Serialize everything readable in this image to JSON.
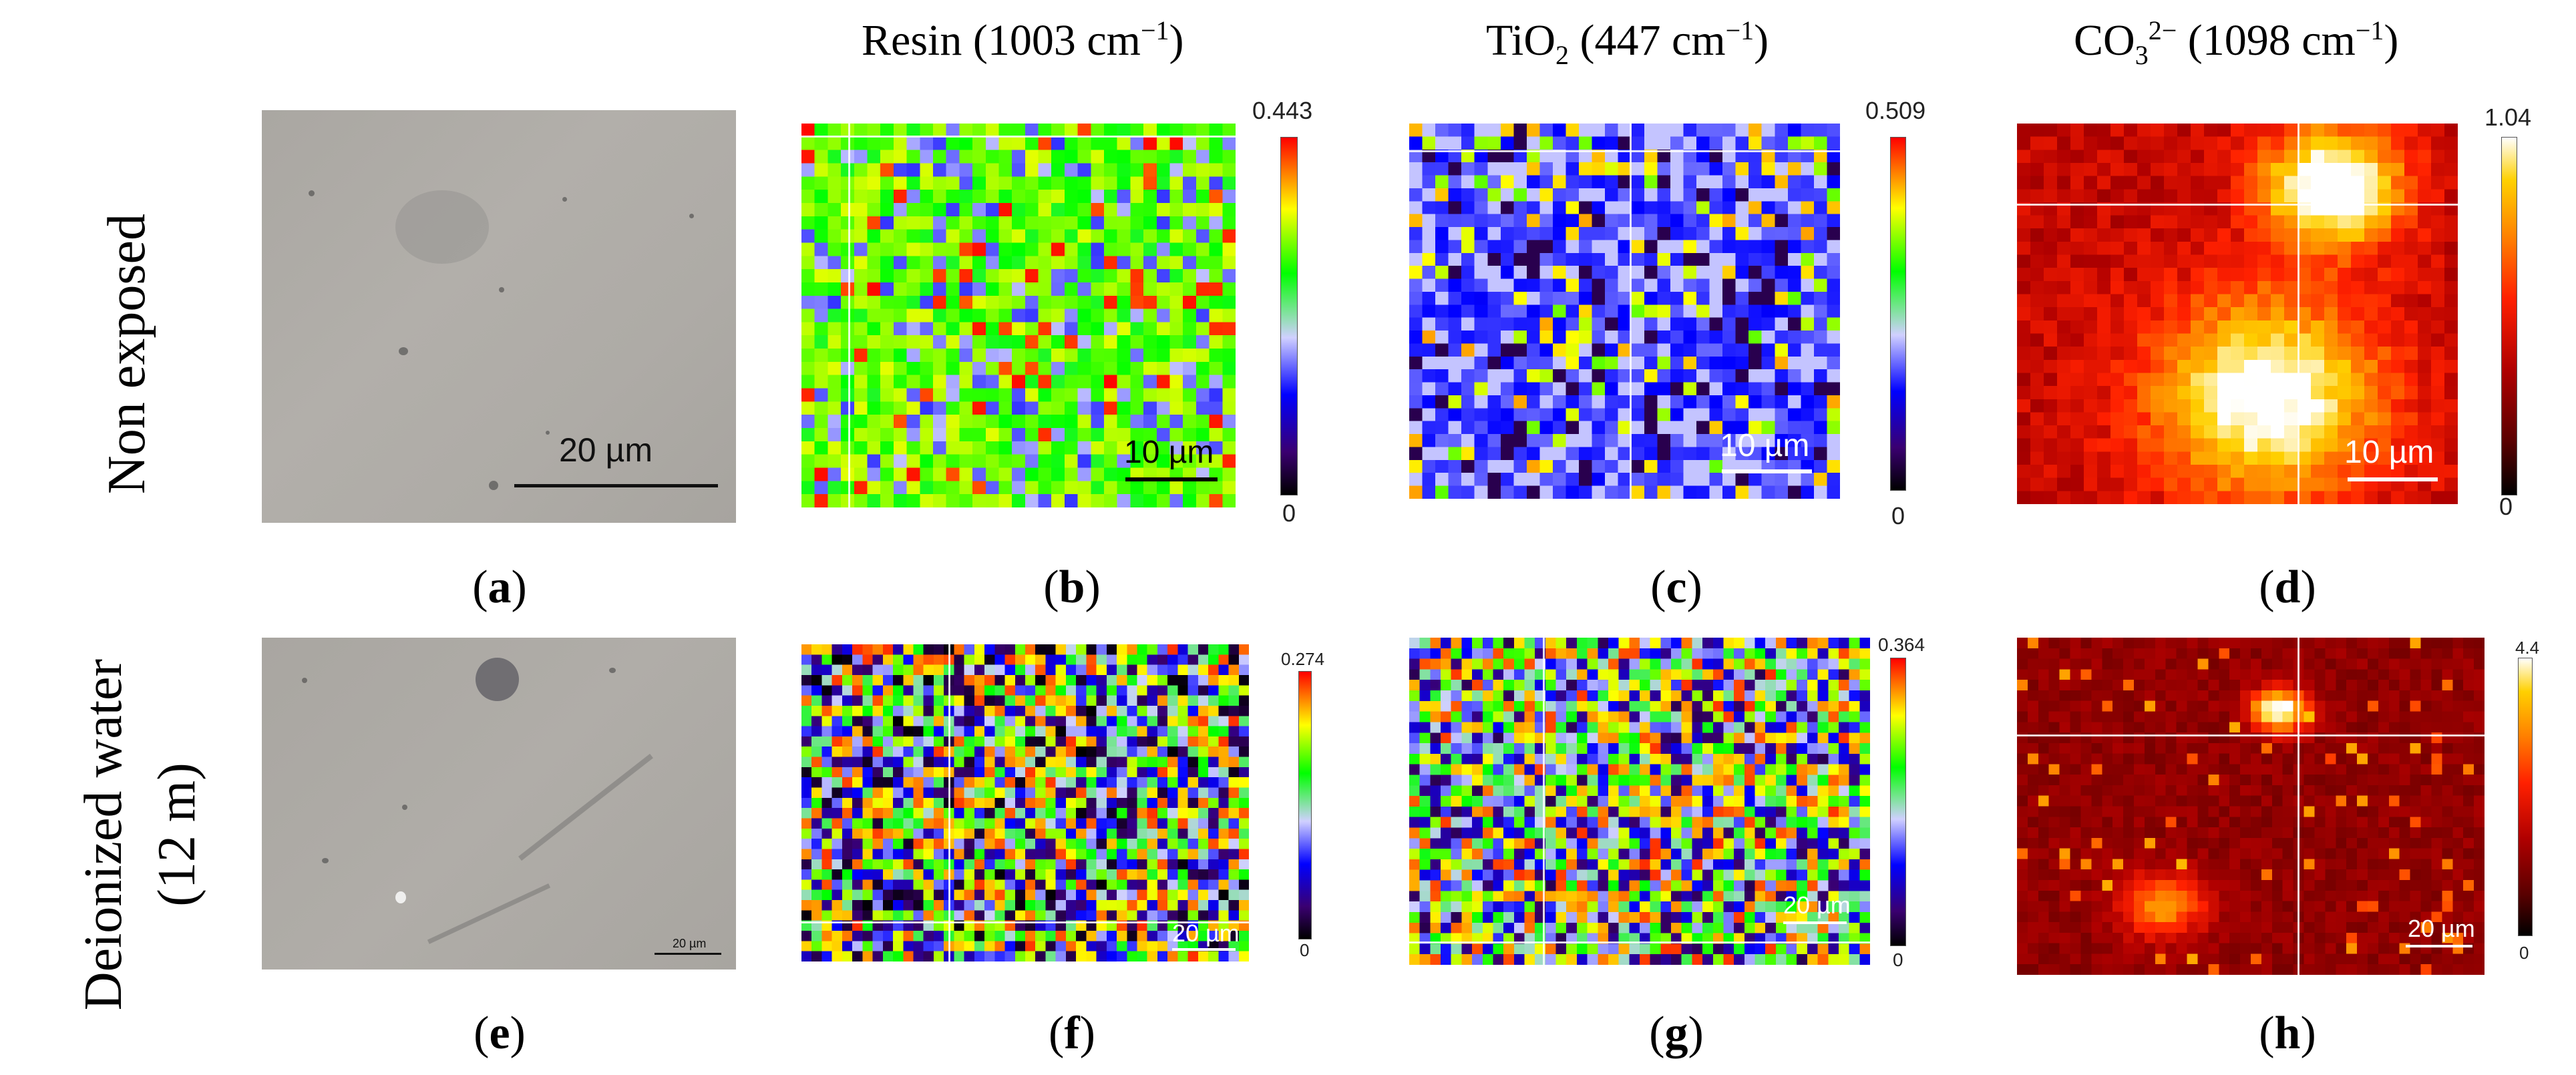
{
  "columns": {
    "resin": {
      "name": "Resin",
      "band": "(1003 cm",
      "sup": "−1",
      "close": ")"
    },
    "tio2": {
      "name": "TiO",
      "sub": "2",
      "band": " (447 cm",
      "sup": "−1",
      "close": ")"
    },
    "co3": {
      "name": "CO",
      "sub": "3",
      "sup1": "2−",
      "band": " (1098 cm",
      "sup": "−1",
      "close": ")"
    }
  },
  "rows": {
    "top": {
      "label": "Non exposed"
    },
    "bottom": {
      "label_line1": "Deionized water",
      "label_line2": "(12 m)"
    }
  },
  "panels": [
    {
      "id": "a",
      "caption": "a",
      "type": "micrograph",
      "scale_bar": "20 µm"
    },
    {
      "id": "b",
      "caption": "b",
      "type": "map",
      "colormap": "rainbow",
      "scale_bar": "10 µm",
      "cbar_max": "0.443",
      "cbar_min": "0"
    },
    {
      "id": "c",
      "caption": "c",
      "type": "map",
      "colormap": "rainbow",
      "scale_bar": "10 µm",
      "cbar_max": "0.509",
      "cbar_min": "0"
    },
    {
      "id": "d",
      "caption": "d",
      "type": "map",
      "colormap": "hot",
      "scale_bar": "10 µm",
      "cbar_max": "1.04",
      "cbar_min": "0"
    },
    {
      "id": "e",
      "caption": "e",
      "type": "micrograph",
      "scale_bar": "20 µm"
    },
    {
      "id": "f",
      "caption": "f",
      "type": "map",
      "colormap": "rainbow",
      "scale_bar": "20 µm",
      "cbar_max": "0.274",
      "cbar_min": "0"
    },
    {
      "id": "g",
      "caption": "g",
      "type": "map",
      "colormap": "rainbow",
      "scale_bar": "20 µm",
      "cbar_max": "0.364",
      "cbar_min": "0"
    },
    {
      "id": "h",
      "caption": "h",
      "type": "map",
      "colormap": "hot",
      "scale_bar": "20 µm",
      "cbar_max": "4.4",
      "cbar_min": "0"
    }
  ],
  "colors": {
    "rainbow": [
      "#000000",
      "#3a0070",
      "#0000ff",
      "#d0d0ff",
      "#00ff00",
      "#ffff00",
      "#ff8000",
      "#ff0000"
    ],
    "hot": [
      "#000000",
      "#5a0000",
      "#b00000",
      "#ff2000",
      "#ff8000",
      "#ffd000",
      "#ffffff"
    ]
  }
}
